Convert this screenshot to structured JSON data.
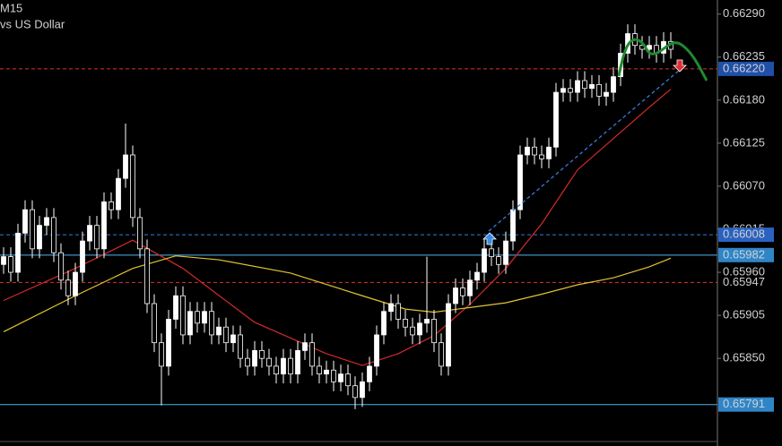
{
  "chart_data": {
    "type": "candlestick",
    "title": "M15",
    "subtitle": "vs US Dollar",
    "ylim": [
      0.65738,
      0.66308
    ],
    "yticks": [
      {
        "value": 0.6629,
        "label": "0.66290"
      },
      0.66235,
      {
        "value": 0.6618,
        "label": "0.66180"
      },
      0.66125,
      {
        "value": 0.6607,
        "label": "0.66070"
      },
      0.66015,
      {
        "value": 0.6596,
        "label": "0.65960"
      },
      0.65905,
      {
        "value": 0.6585,
        "label": "0.65850"
      }
    ],
    "open": [
      0.6597,
      0.6598,
      0.6596,
      0.6601,
      0.6604,
      0.6599,
      0.6602,
      0.6603,
      0.65985,
      0.6595,
      0.6593,
      0.6596,
      0.66,
      0.6602,
      0.6599,
      0.6605,
      0.6604,
      0.6608,
      0.6611,
      0.6603,
      0.6599,
      0.6592,
      0.6587,
      0.6584,
      0.659,
      0.6593,
      0.6588,
      0.6591,
      0.65895,
      0.6591,
      0.6588,
      0.6589,
      0.6587,
      0.6588,
      0.6585,
      0.6584,
      0.6586,
      0.6585,
      0.6584,
      0.6583,
      0.6585,
      0.6583,
      0.6586,
      0.6587,
      0.6584,
      0.6583,
      0.65835,
      0.6582,
      0.6583,
      0.65815,
      0.658,
      0.6582,
      0.6584,
      0.6588,
      0.6591,
      0.6592,
      0.659,
      0.6589,
      0.6588,
      0.65895,
      0.659,
      0.6587,
      0.6584,
      0.6592,
      0.6594,
      0.6593,
      0.6595,
      0.6596,
      0.6599,
      0.6598,
      0.6597,
      0.66,
      0.6604,
      0.6611,
      0.6612,
      0.6611,
      0.66105,
      0.6612,
      0.6619,
      0.66195,
      0.6619,
      0.66205,
      0.66195,
      0.662,
      0.66185,
      0.6619,
      0.6621,
      0.6624,
      0.66265,
      0.6625,
      0.66245,
      0.6625,
      0.6624,
      0.66255
    ],
    "high": [
      0.65992,
      0.65992,
      0.66022,
      0.66052,
      0.66052,
      0.66032,
      0.66042,
      0.66042,
      0.65997,
      0.65962,
      0.65972,
      0.66012,
      0.66032,
      0.66032,
      0.66062,
      0.66062,
      0.66092,
      0.6615,
      0.66122,
      0.66042,
      0.66002,
      0.65932,
      0.65882,
      0.65912,
      0.65942,
      0.65942,
      0.65922,
      0.65922,
      0.65922,
      0.65922,
      0.65902,
      0.65902,
      0.65892,
      0.65892,
      0.65862,
      0.65872,
      0.65872,
      0.65862,
      0.65852,
      0.65862,
      0.65862,
      0.65872,
      0.65882,
      0.65882,
      0.65852,
      0.65847,
      0.65847,
      0.65842,
      0.65842,
      0.65827,
      0.65832,
      0.65852,
      0.65892,
      0.65922,
      0.65932,
      0.65932,
      0.65912,
      0.65902,
      0.65907,
      0.6598,
      0.65912,
      0.65882,
      0.65932,
      0.65952,
      0.65952,
      0.65962,
      0.65972,
      0.66002,
      0.66002,
      0.65992,
      0.66012,
      0.66052,
      0.66122,
      0.66132,
      0.66132,
      0.66122,
      0.66132,
      0.66202,
      0.66207,
      0.66207,
      0.66217,
      0.66217,
      0.66212,
      0.66212,
      0.66202,
      0.66222,
      0.66252,
      0.66277,
      0.66277,
      0.66262,
      0.66262,
      0.66262,
      0.66267,
      0.66267
    ],
    "low": [
      0.65958,
      0.65948,
      0.65948,
      0.65998,
      0.65978,
      0.65978,
      0.66008,
      0.65973,
      0.65938,
      0.65918,
      0.65918,
      0.65948,
      0.65988,
      0.65978,
      0.65978,
      0.66028,
      0.66028,
      0.66068,
      0.66018,
      0.65978,
      0.65908,
      0.65858,
      0.6579,
      0.65828,
      0.65888,
      0.65868,
      0.65868,
      0.65883,
      0.65883,
      0.65868,
      0.65868,
      0.65858,
      0.65858,
      0.65838,
      0.65828,
      0.65828,
      0.65838,
      0.65828,
      0.65818,
      0.65818,
      0.65818,
      0.65818,
      0.65848,
      0.65828,
      0.65818,
      0.65818,
      0.65808,
      0.65808,
      0.65803,
      0.65785,
      0.65788,
      0.65808,
      0.65828,
      0.65868,
      0.65898,
      0.65888,
      0.65878,
      0.65868,
      0.65868,
      0.65883,
      0.65858,
      0.65828,
      0.65828,
      0.65908,
      0.65918,
      0.65918,
      0.65938,
      0.65948,
      0.65968,
      0.65958,
      0.65958,
      0.65988,
      0.66028,
      0.66098,
      0.66098,
      0.66093,
      0.66093,
      0.66108,
      0.66178,
      0.66178,
      0.66178,
      0.66183,
      0.66183,
      0.66173,
      0.66173,
      0.66178,
      0.66198,
      0.66228,
      0.66238,
      0.66233,
      0.66233,
      0.66228,
      0.66228,
      0.66233
    ],
    "close": [
      0.6598,
      0.6596,
      0.6601,
      0.6604,
      0.6599,
      0.6602,
      0.6603,
      0.65985,
      0.6595,
      0.6593,
      0.6596,
      0.66,
      0.6602,
      0.6599,
      0.6605,
      0.6604,
      0.6608,
      0.6611,
      0.6603,
      0.6599,
      0.6592,
      0.6587,
      0.6584,
      0.659,
      0.6593,
      0.6588,
      0.6591,
      0.65895,
      0.6591,
      0.6588,
      0.6589,
      0.6587,
      0.6588,
      0.6585,
      0.6584,
      0.6586,
      0.6585,
      0.6584,
      0.6583,
      0.6585,
      0.6583,
      0.6586,
      0.6587,
      0.6584,
      0.6583,
      0.65835,
      0.6582,
      0.6583,
      0.65815,
      0.658,
      0.6582,
      0.6584,
      0.6588,
      0.6591,
      0.6592,
      0.659,
      0.6589,
      0.6588,
      0.65895,
      0.659,
      0.6587,
      0.6584,
      0.6592,
      0.6594,
      0.6593,
      0.6595,
      0.6596,
      0.6599,
      0.6598,
      0.6597,
      0.66,
      0.6604,
      0.6611,
      0.6612,
      0.6611,
      0.66105,
      0.6612,
      0.6619,
      0.66195,
      0.6619,
      0.66205,
      0.66195,
      0.662,
      0.66185,
      0.6619,
      0.6621,
      0.6624,
      0.66265,
      0.6625,
      0.66245,
      0.6625,
      0.6624,
      0.66255,
      0.66245
    ],
    "up_color": "#ffffff",
    "down_color": "#000000",
    "lines": [
      {
        "color": "#d42a2a",
        "x": [
          0,
          10,
          18,
          25,
          35,
          45,
          50,
          55,
          60,
          65,
          70,
          75,
          80,
          85,
          90,
          93
        ],
        "values": [
          0.65924,
          0.65965,
          0.66001,
          0.65965,
          0.65896,
          0.65856,
          0.65841,
          0.65856,
          0.65879,
          0.65919,
          0.65965,
          0.66022,
          0.66091,
          0.66131,
          0.66171,
          0.66194
        ]
      },
      {
        "color": "#e0c531",
        "x": [
          0,
          10,
          18,
          24,
          30,
          40,
          50,
          56,
          60,
          65,
          70,
          75,
          80,
          85,
          90,
          93
        ],
        "values": [
          0.65884,
          0.6593,
          0.65965,
          0.65981,
          0.65976,
          0.65959,
          0.6593,
          0.65913,
          0.65909,
          0.65915,
          0.65921,
          0.65932,
          0.65944,
          0.65953,
          0.65967,
          0.65978
        ]
      }
    ],
    "levels": [
      {
        "value": 0.6622,
        "label": "0.66220",
        "color": "#e03030",
        "dashed": true,
        "box": "#1f4fa8"
      },
      {
        "value": 0.66008,
        "label": "0.66008",
        "color": "#3a78d8",
        "dashed": true,
        "box": "#2a62c0"
      },
      {
        "value": 0.65982,
        "label": "0.65982",
        "color": "#4fb6f0",
        "dashed": false,
        "box": "#2f85c8"
      },
      {
        "value": 0.65947,
        "label": "0.65947",
        "color": "#e03030",
        "dashed": true,
        "box": null
      },
      {
        "value": 0.65791,
        "label": "0.65791",
        "color": "#4fb6f0",
        "dashed": false,
        "box": "#2f85c8"
      }
    ]
  }
}
